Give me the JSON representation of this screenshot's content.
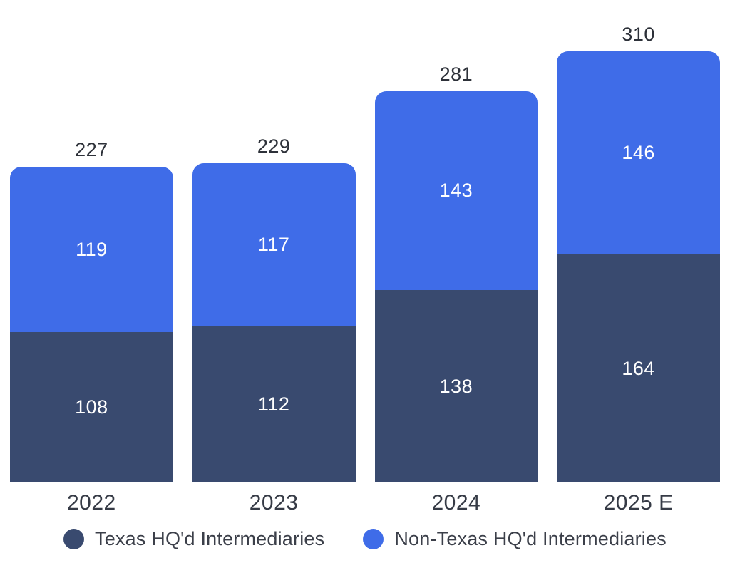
{
  "chart_data": {
    "type": "bar",
    "stacked": true,
    "orientation": "vertical",
    "title": "",
    "xlabel": "",
    "ylabel": "",
    "grid": false,
    "axes_hidden": true,
    "legend_position": "bottom",
    "value_labels": "inside-center",
    "total_labels": "above-bar",
    "categories": [
      "2022",
      "2023",
      "2024",
      "2025 E"
    ],
    "series": [
      {
        "name": "Texas HQ'd Intermediaries",
        "color": "#394a6f",
        "values": [
          108,
          112,
          138,
          164
        ]
      },
      {
        "name": "Non-Texas HQ'd Intermediaries",
        "color": "#3f6ce8",
        "values": [
          119,
          117,
          143,
          146
        ]
      }
    ],
    "totals": [
      227,
      229,
      281,
      310
    ],
    "inside_label_color": "#ffffff",
    "total_label_color": "#2d3139",
    "axis_label_color": "#363b46",
    "legend_text_color": "#3b3f49"
  }
}
